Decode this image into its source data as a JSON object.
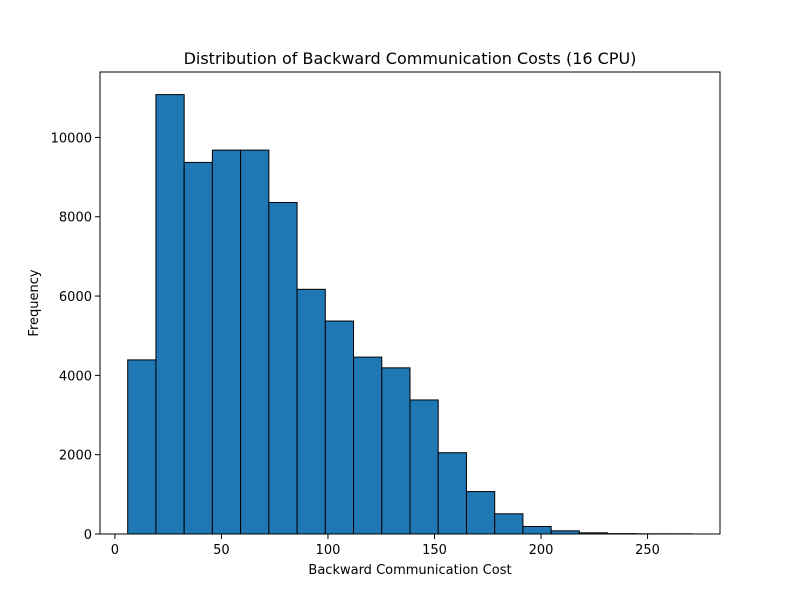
{
  "chart_data": {
    "type": "bar",
    "title": "Distribution of Backward Communication Costs (16 CPU)",
    "xlabel": "Backward Communication Cost",
    "ylabel": "Frequency",
    "bar_color": "#1f77b4",
    "edge_color": "#000000",
    "xlim": [
      -7,
      284
    ],
    "ylim": [
      0,
      11650
    ],
    "x_ticks": [
      0,
      50,
      100,
      150,
      200,
      250
    ],
    "y_ticks": [
      0,
      2000,
      4000,
      6000,
      8000,
      10000
    ],
    "bins": [
      {
        "x0": 6,
        "x1": 19.25,
        "value": 4390
      },
      {
        "x0": 19.25,
        "x1": 32.5,
        "value": 11080
      },
      {
        "x0": 32.5,
        "x1": 45.75,
        "value": 9370
      },
      {
        "x0": 45.75,
        "x1": 59,
        "value": 9680
      },
      {
        "x0": 59,
        "x1": 72.25,
        "value": 9680
      },
      {
        "x0": 72.25,
        "x1": 85.5,
        "value": 8360
      },
      {
        "x0": 85.5,
        "x1": 98.75,
        "value": 6170
      },
      {
        "x0": 98.75,
        "x1": 112,
        "value": 5370
      },
      {
        "x0": 112,
        "x1": 125.25,
        "value": 4460
      },
      {
        "x0": 125.25,
        "x1": 138.5,
        "value": 4190
      },
      {
        "x0": 138.5,
        "x1": 151.75,
        "value": 3380
      },
      {
        "x0": 151.75,
        "x1": 165,
        "value": 2050
      },
      {
        "x0": 165,
        "x1": 178.25,
        "value": 1070
      },
      {
        "x0": 178.25,
        "x1": 191.5,
        "value": 510
      },
      {
        "x0": 191.5,
        "x1": 204.75,
        "value": 190
      },
      {
        "x0": 204.75,
        "x1": 218,
        "value": 80
      },
      {
        "x0": 218,
        "x1": 231.25,
        "value": 30
      },
      {
        "x0": 231.25,
        "x1": 244.5,
        "value": 10
      },
      {
        "x0": 244.5,
        "x1": 257.75,
        "value": 5
      },
      {
        "x0": 257.75,
        "x1": 271,
        "value": 5
      }
    ]
  }
}
